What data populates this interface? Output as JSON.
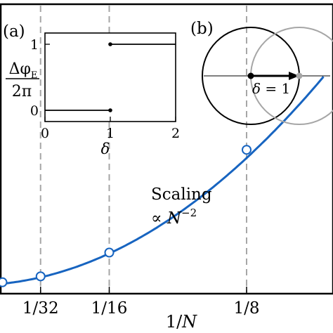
{
  "chart_data": [
    {
      "id": "main",
      "type": "line",
      "xlabel_base": "1/",
      "xlabel_var": "N",
      "x_ticks": [
        {
          "value": 0.03125,
          "label": "1/32"
        },
        {
          "value": 0.0625,
          "label": "1/16"
        },
        {
          "value": 0.125,
          "label": "1/8"
        }
      ],
      "x_guides": [
        0.03125,
        0.0625,
        0.125
      ],
      "annotation": {
        "line1": "Scaling",
        "line2_prefix": "∝ ",
        "line2_var": "N",
        "line2_exp": "−2"
      },
      "series": [
        {
          "color": "#1764c0",
          "points": [
            [
              0.0069,
              0.0043
            ],
            [
              0.0139,
              0.0081
            ],
            [
              0.03125,
              0.019
            ],
            [
              0.0625,
              0.063
            ],
            [
              0.125,
              0.253
            ]
          ],
          "curve": "quadratic"
        }
      ]
    },
    {
      "id": "inset-a",
      "type": "line",
      "panel_label": "(a)",
      "xlabel": "δ",
      "ylabel_numerator_base": "Δφ",
      "ylabel_numerator_sub": "E",
      "ylabel_denominator": "2π",
      "xlim": [
        0,
        2
      ],
      "ylim": [
        0,
        1
      ],
      "x_ticks": [
        0,
        1,
        2
      ],
      "y_ticks": [
        0,
        1
      ],
      "series": [
        {
          "segments": [
            [
              [
                0,
                0
              ],
              [
                1,
                0
              ]
            ],
            [
              [
                1,
                1
              ],
              [
                2,
                1
              ]
            ]
          ],
          "endpoints": [
            [
              1,
              0
            ],
            [
              1,
              1
            ]
          ]
        }
      ]
    },
    {
      "id": "inset-b",
      "type": "diagram",
      "panel_label": "(b)",
      "label_var": "δ",
      "label_rest": " = 1",
      "circles": [
        {
          "name": "black-circle",
          "color": "#000000"
        },
        {
          "name": "gray-circle",
          "color": "#a6a6a6"
        }
      ]
    }
  ]
}
